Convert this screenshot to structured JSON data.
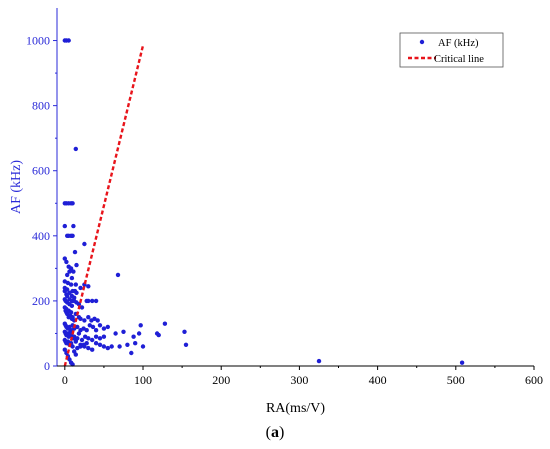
{
  "chart_data": {
    "type": "scatter",
    "xlabel": "RA(ms/V)",
    "ylabel": "AF (kHz)",
    "xlim": [
      -10,
      600
    ],
    "ylim": [
      0,
      1100
    ],
    "x_ticks": [
      0,
      100,
      200,
      300,
      400,
      500,
      600
    ],
    "y_ticks": [
      0,
      200,
      400,
      600,
      800,
      1000
    ],
    "x_tick_labels": [
      "0",
      "100",
      "200",
      "300",
      "400",
      "500",
      "600"
    ],
    "y_tick_labels": [
      "0",
      "200",
      "400",
      "600",
      "800",
      "1000"
    ],
    "legend_position": "top-right",
    "colors": {
      "points": "#1f1fd6",
      "critical_line": "#e8141b",
      "y_axis": "#2a2ad8",
      "x_axis": "#000000"
    },
    "series": [
      {
        "name": "AF (kHz)",
        "kind": "scatter",
        "x": [
          0,
          2,
          5,
          14,
          0,
          2,
          5,
          8,
          10,
          0,
          3,
          5,
          8,
          10,
          11,
          13,
          15,
          25,
          0,
          2,
          5,
          8,
          11,
          3,
          6,
          9,
          14,
          0,
          4,
          8,
          10,
          13,
          15,
          20,
          25,
          30,
          0,
          2,
          3,
          6,
          9,
          12,
          15,
          18,
          22,
          28,
          30,
          35,
          40,
          0,
          1,
          2,
          3,
          5,
          7,
          9,
          10,
          12,
          14,
          18,
          20,
          25,
          30,
          34,
          38,
          42,
          0,
          1,
          2,
          4,
          6,
          8,
          10,
          12,
          16,
          20,
          24,
          28,
          32,
          36,
          40,
          45,
          50,
          55,
          0,
          1,
          2,
          3,
          4,
          5,
          6,
          7,
          8,
          10,
          12,
          14,
          16,
          18,
          22,
          26,
          30,
          35,
          40,
          45,
          50,
          0,
          1,
          2,
          4,
          6,
          8,
          10,
          14,
          20,
          25,
          30,
          35,
          40,
          45,
          50,
          55,
          60,
          65,
          68,
          70,
          75,
          80,
          85,
          88,
          90,
          95,
          97,
          100,
          118,
          120,
          128,
          153,
          155,
          325,
          508,
          0,
          2,
          4,
          6,
          8,
          10,
          12,
          14,
          16,
          20,
          24,
          28,
          0,
          3,
          6,
          9,
          12,
          2,
          5,
          8,
          0,
          1,
          3,
          6,
          9
        ],
        "y": [
          1000,
          1000,
          1000,
          667,
          500,
          500,
          500,
          500,
          500,
          430,
          400,
          400,
          400,
          400,
          430,
          350,
          310,
          375,
          330,
          320,
          305,
          300,
          290,
          280,
          290,
          270,
          250,
          260,
          255,
          250,
          230,
          230,
          225,
          240,
          250,
          245,
          230,
          220,
          215,
          205,
          200,
          210,
          195,
          190,
          180,
          200,
          200,
          200,
          200,
          180,
          170,
          165,
          160,
          150,
          155,
          145,
          150,
          140,
          160,
          150,
          145,
          140,
          150,
          140,
          145,
          140,
          130,
          125,
          120,
          115,
          120,
          110,
          125,
          115,
          120,
          110,
          115,
          110,
          125,
          120,
          110,
          125,
          115,
          120,
          105,
          100,
          95,
          100,
          95,
          90,
          100,
          105,
          95,
          85,
          90,
          80,
          85,
          100,
          80,
          90,
          85,
          80,
          90,
          85,
          90,
          80,
          75,
          70,
          75,
          65,
          70,
          60,
          75,
          65,
          60,
          55,
          50,
          70,
          65,
          60,
          55,
          60,
          100,
          280,
          60,
          105,
          65,
          40,
          90,
          70,
          100,
          125,
          60,
          100,
          95,
          130,
          105,
          65,
          15,
          10,
          50,
          40,
          30,
          20,
          10,
          5,
          45,
          35,
          55,
          60,
          65,
          70,
          240,
          235,
          225,
          215,
          200,
          175,
          170,
          165,
          205,
          200,
          195,
          190,
          185
        ]
      },
      {
        "name": "Critical line",
        "kind": "line",
        "style": "dashed",
        "x": [
          0,
          100
        ],
        "y": [
          0,
          985
        ]
      }
    ]
  },
  "panel_label": {
    "open": "(",
    "letter": "a",
    "close": ")"
  }
}
